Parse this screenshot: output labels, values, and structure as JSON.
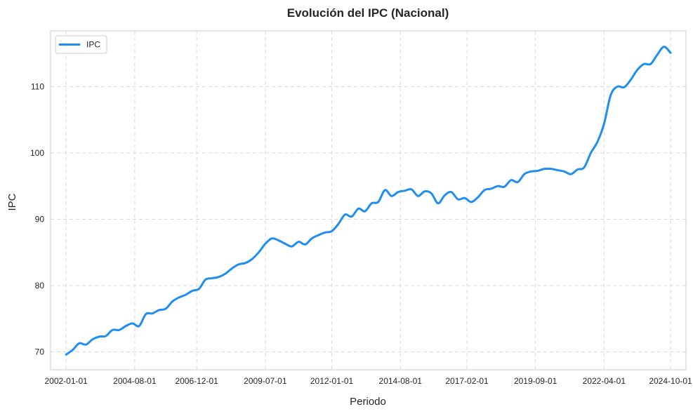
{
  "chart_data": {
    "type": "line",
    "title": "Evolución del IPC (Nacional)",
    "xlabel": "Periodo",
    "ylabel": "IPC",
    "x_ticks": [
      "2002-01-01",
      "2004-08-01",
      "2006-12-01",
      "2009-07-01",
      "2012-01-01",
      "2014-08-01",
      "2017-02-01",
      "2019-09-01",
      "2022-04-01",
      "2024-10-01"
    ],
    "y_ticks": [
      70,
      80,
      90,
      100,
      110
    ],
    "xlim": [
      "2001-06-01",
      "2025-05-01"
    ],
    "ylim": [
      67.3,
      118.4
    ],
    "grid": true,
    "legend": "top-left",
    "color": "#1f8ef1",
    "series": [
      {
        "name": "IPC",
        "points": [
          [
            "2002-01-01",
            69.6
          ],
          [
            "2002-04-01",
            70.3
          ],
          [
            "2002-07-01",
            71.3
          ],
          [
            "2002-10-01",
            71.1
          ],
          [
            "2003-01-01",
            71.9
          ],
          [
            "2003-04-01",
            72.3
          ],
          [
            "2003-07-01",
            72.4
          ],
          [
            "2003-10-01",
            73.3
          ],
          [
            "2004-01-01",
            73.3
          ],
          [
            "2004-04-01",
            73.9
          ],
          [
            "2004-07-01",
            74.3
          ],
          [
            "2004-10-01",
            73.9
          ],
          [
            "2005-01-01",
            75.7
          ],
          [
            "2005-04-01",
            75.8
          ],
          [
            "2005-07-01",
            76.3
          ],
          [
            "2005-10-01",
            76.5
          ],
          [
            "2006-01-01",
            77.6
          ],
          [
            "2006-04-01",
            78.2
          ],
          [
            "2006-07-01",
            78.6
          ],
          [
            "2006-10-01",
            79.2
          ],
          [
            "2007-01-01",
            79.5
          ],
          [
            "2007-04-01",
            80.9
          ],
          [
            "2007-07-01",
            81.1
          ],
          [
            "2007-10-01",
            81.3
          ],
          [
            "2008-01-01",
            81.8
          ],
          [
            "2008-04-01",
            82.6
          ],
          [
            "2008-07-01",
            83.2
          ],
          [
            "2008-10-01",
            83.4
          ],
          [
            "2009-01-01",
            84.0
          ],
          [
            "2009-04-01",
            85.0
          ],
          [
            "2009-07-01",
            86.3
          ],
          [
            "2009-10-01",
            87.1
          ],
          [
            "2010-01-01",
            86.8
          ],
          [
            "2010-04-01",
            86.3
          ],
          [
            "2010-07-01",
            85.9
          ],
          [
            "2010-10-01",
            86.6
          ],
          [
            "2011-01-01",
            86.2
          ],
          [
            "2011-04-01",
            87.1
          ],
          [
            "2011-07-01",
            87.6
          ],
          [
            "2011-10-01",
            88.0
          ],
          [
            "2012-01-01",
            88.2
          ],
          [
            "2012-04-01",
            89.3
          ],
          [
            "2012-07-01",
            90.7
          ],
          [
            "2012-10-01",
            90.4
          ],
          [
            "2013-01-01",
            91.6
          ],
          [
            "2013-04-01",
            91.2
          ],
          [
            "2013-07-01",
            92.4
          ],
          [
            "2013-10-01",
            92.6
          ],
          [
            "2014-01-01",
            94.4
          ],
          [
            "2014-04-01",
            93.5
          ],
          [
            "2014-07-01",
            94.1
          ],
          [
            "2014-10-01",
            94.3
          ],
          [
            "2015-01-01",
            94.5
          ],
          [
            "2015-04-01",
            93.5
          ],
          [
            "2015-07-01",
            94.2
          ],
          [
            "2015-10-01",
            93.9
          ],
          [
            "2016-01-01",
            92.4
          ],
          [
            "2016-04-01",
            93.6
          ],
          [
            "2016-07-01",
            94.1
          ],
          [
            "2016-10-01",
            93.0
          ],
          [
            "2017-01-01",
            93.2
          ],
          [
            "2017-04-01",
            92.6
          ],
          [
            "2017-07-01",
            93.3
          ],
          [
            "2017-10-01",
            94.4
          ],
          [
            "2018-01-01",
            94.6
          ],
          [
            "2018-04-01",
            95.0
          ],
          [
            "2018-07-01",
            94.9
          ],
          [
            "2018-10-01",
            95.9
          ],
          [
            "2019-01-01",
            95.6
          ],
          [
            "2019-04-01",
            96.8
          ],
          [
            "2019-07-01",
            97.2
          ],
          [
            "2019-10-01",
            97.3
          ],
          [
            "2020-01-01",
            97.6
          ],
          [
            "2020-04-01",
            97.6
          ],
          [
            "2020-07-01",
            97.4
          ],
          [
            "2020-10-01",
            97.2
          ],
          [
            "2021-01-01",
            96.8
          ],
          [
            "2021-04-01",
            97.5
          ],
          [
            "2021-07-01",
            97.8
          ],
          [
            "2021-10-01",
            100.0
          ],
          [
            "2022-01-01",
            101.7
          ],
          [
            "2022-04-01",
            104.4
          ],
          [
            "2022-07-01",
            108.7
          ],
          [
            "2022-10-01",
            110.0
          ],
          [
            "2023-01-01",
            109.9
          ],
          [
            "2023-04-01",
            111.0
          ],
          [
            "2023-07-01",
            112.5
          ],
          [
            "2023-10-01",
            113.4
          ],
          [
            "2024-01-01",
            113.4
          ],
          [
            "2024-04-01",
            114.8
          ],
          [
            "2024-07-01",
            116.0
          ],
          [
            "2024-10-01",
            115.1
          ]
        ]
      }
    ]
  }
}
